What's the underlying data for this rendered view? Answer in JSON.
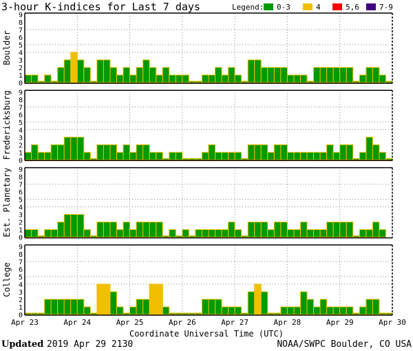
{
  "chart_data": [
    {
      "type": "bar",
      "title": "3-hour K-indices for Last 7 days",
      "xlabel": "Coordinate Universal Time (UTC)",
      "x_ticks": [
        "Apr 23",
        "Apr 24",
        "Apr 25",
        "Apr 26",
        "Apr 27",
        "Apr 28",
        "Apr 29",
        "Apr 30"
      ],
      "y_ticks": [
        "0",
        "1",
        "2",
        "3",
        "4",
        "5",
        "6",
        "7",
        "8",
        "9"
      ],
      "ylim": [
        0,
        9
      ],
      "bars_per_day": 8,
      "grid_levels": [
        4,
        5,
        7
      ],
      "legend": {
        "label": "Legend:",
        "position": "top-right",
        "entries": [
          {
            "label": "0-3",
            "color": "#009900"
          },
          {
            "label": "4",
            "color": "#f0c000"
          },
          {
            "label": "5,6",
            "color": "#ff0000"
          },
          {
            "label": "7-9",
            "color": "#400080"
          }
        ]
      },
      "series": [
        {
          "name": "Boulder",
          "values": [
            1,
            1,
            0,
            1,
            0,
            2,
            3,
            4,
            3,
            2,
            0,
            3,
            3,
            2,
            1,
            2,
            1,
            2,
            3,
            2,
            1,
            2,
            1,
            1,
            1,
            0,
            0,
            1,
            1,
            2,
            1,
            2,
            1,
            0,
            3,
            3,
            2,
            2,
            2,
            2,
            1,
            1,
            1,
            0,
            2,
            2,
            2,
            2,
            2,
            2,
            0,
            1,
            2,
            2,
            1,
            0
          ]
        },
        {
          "name": "Fredericksburg",
          "values": [
            1,
            2,
            1,
            1,
            2,
            2,
            3,
            3,
            3,
            1,
            0,
            2,
            2,
            2,
            1,
            2,
            1,
            2,
            2,
            1,
            1,
            0,
            1,
            1,
            0,
            0,
            0,
            1,
            2,
            1,
            1,
            1,
            1,
            0,
            2,
            2,
            2,
            1,
            2,
            2,
            1,
            1,
            1,
            1,
            1,
            1,
            2,
            1,
            2,
            2,
            0,
            1,
            3,
            2,
            1,
            0
          ]
        },
        {
          "name": "Est. Planetary",
          "values": [
            1,
            1,
            0,
            1,
            1,
            2,
            3,
            3,
            3,
            1,
            0,
            2,
            2,
            2,
            1,
            2,
            1,
            2,
            2,
            2,
            2,
            0,
            1,
            0,
            1,
            0,
            1,
            1,
            1,
            1,
            1,
            2,
            1,
            0,
            2,
            2,
            2,
            1,
            2,
            2,
            1,
            1,
            2,
            1,
            1,
            1,
            2,
            2,
            2,
            2,
            0,
            1,
            1,
            2,
            1,
            null
          ]
        },
        {
          "name": "College",
          "values": [
            0,
            0,
            0,
            2,
            2,
            2,
            2,
            2,
            2,
            1,
            0,
            4,
            4,
            3,
            1,
            0,
            1,
            2,
            2,
            4,
            4,
            1,
            0,
            0,
            0,
            0,
            0,
            2,
            2,
            2,
            1,
            1,
            1,
            0,
            3,
            4,
            3,
            0,
            0,
            1,
            1,
            1,
            3,
            2,
            1,
            2,
            1,
            1,
            1,
            1,
            0,
            1,
            2,
            2,
            0,
            0
          ]
        }
      ]
    }
  ],
  "footer": {
    "updated_label": "Updated",
    "updated_value": "2019 Apr 29 2130",
    "credit": "NOAA/SWPC Boulder, CO USA"
  },
  "colors": {
    "bar_outline": "#f0c000",
    "grid": "#808080"
  }
}
